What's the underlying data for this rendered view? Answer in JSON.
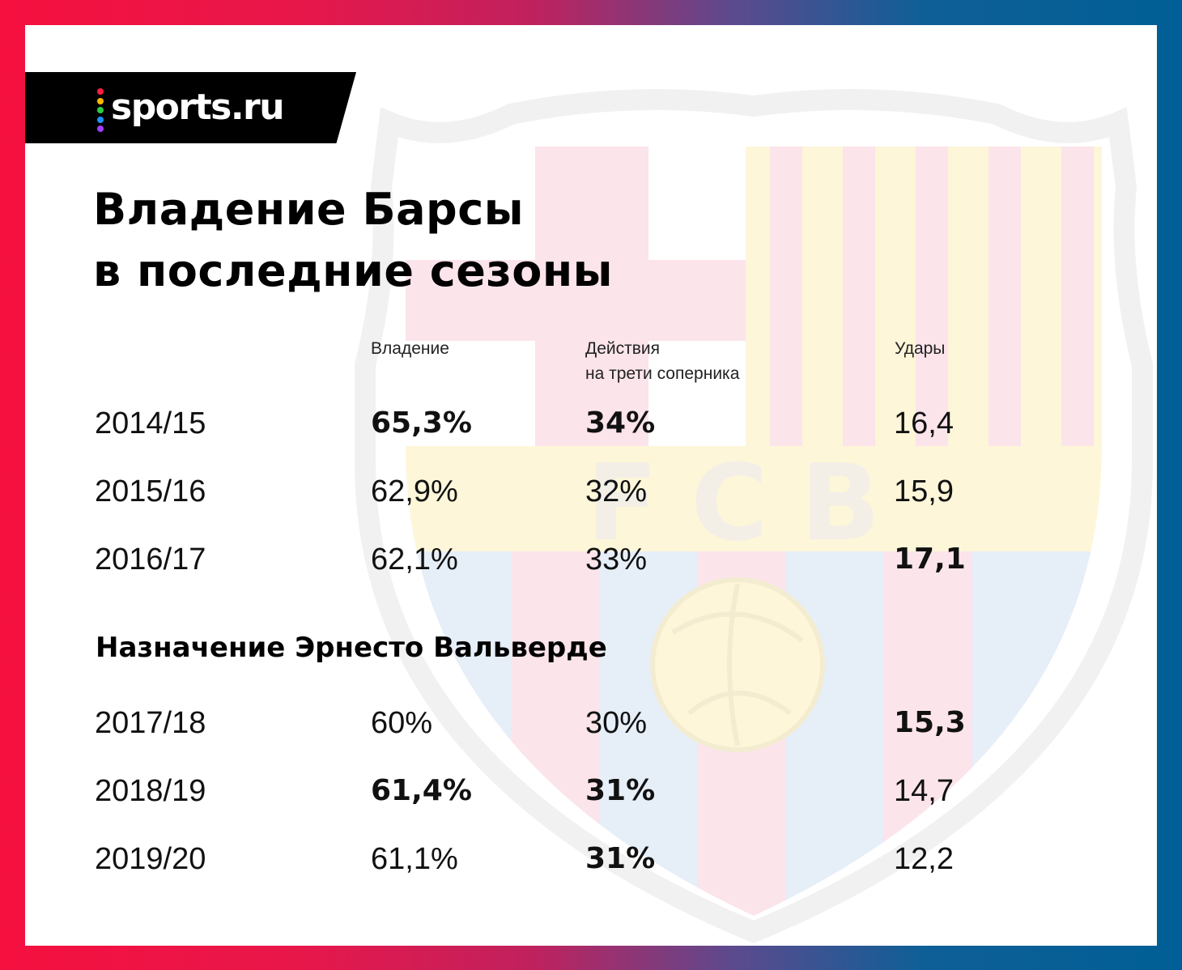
{
  "brand": {
    "name": "sports.ru",
    "dot_colors": [
      "#ff1e41",
      "#ffb600",
      "#2ecc40",
      "#1e90ff",
      "#a040ff"
    ]
  },
  "title": {
    "line1": "Владение Барсы",
    "line2": "в последние сезоны"
  },
  "watermark": {
    "letters": "FCB",
    "colors": {
      "red": "#fbe4ea",
      "yellow": "#fdf6d9",
      "blue": "#e6eef8",
      "outline": "#f1f1f1"
    }
  },
  "columns": {
    "possession": "Владение",
    "final_third_line1": "Действия",
    "final_third_line2": "на трети соперника",
    "shots": "Удары"
  },
  "rows_before": [
    {
      "season": "2014/15",
      "possession": "65,3%",
      "final_third": "34%",
      "shots": "16,4",
      "bold": [
        "possession",
        "final_third"
      ]
    },
    {
      "season": "2015/16",
      "possession": "62,9%",
      "final_third": "32%",
      "shots": "15,9",
      "bold": []
    },
    {
      "season": "2016/17",
      "possession": "62,1%",
      "final_third": "33%",
      "shots": "17,1",
      "bold": [
        "shots"
      ]
    }
  ],
  "divider_note": "Назначение Эрнесто Вальверде",
  "rows_after": [
    {
      "season": "2017/18",
      "possession": "60%",
      "final_third": "30%",
      "shots": "15,3",
      "bold": [
        "shots"
      ]
    },
    {
      "season": "2018/19",
      "possession": "61,4%",
      "final_third": "31%",
      "shots": "14,7",
      "bold": [
        "possession",
        "final_third"
      ]
    },
    {
      "season": "2019/20",
      "possession": "61,1%",
      "final_third": "31%",
      "shots": "12,2",
      "bold": [
        "final_third"
      ]
    }
  ]
}
